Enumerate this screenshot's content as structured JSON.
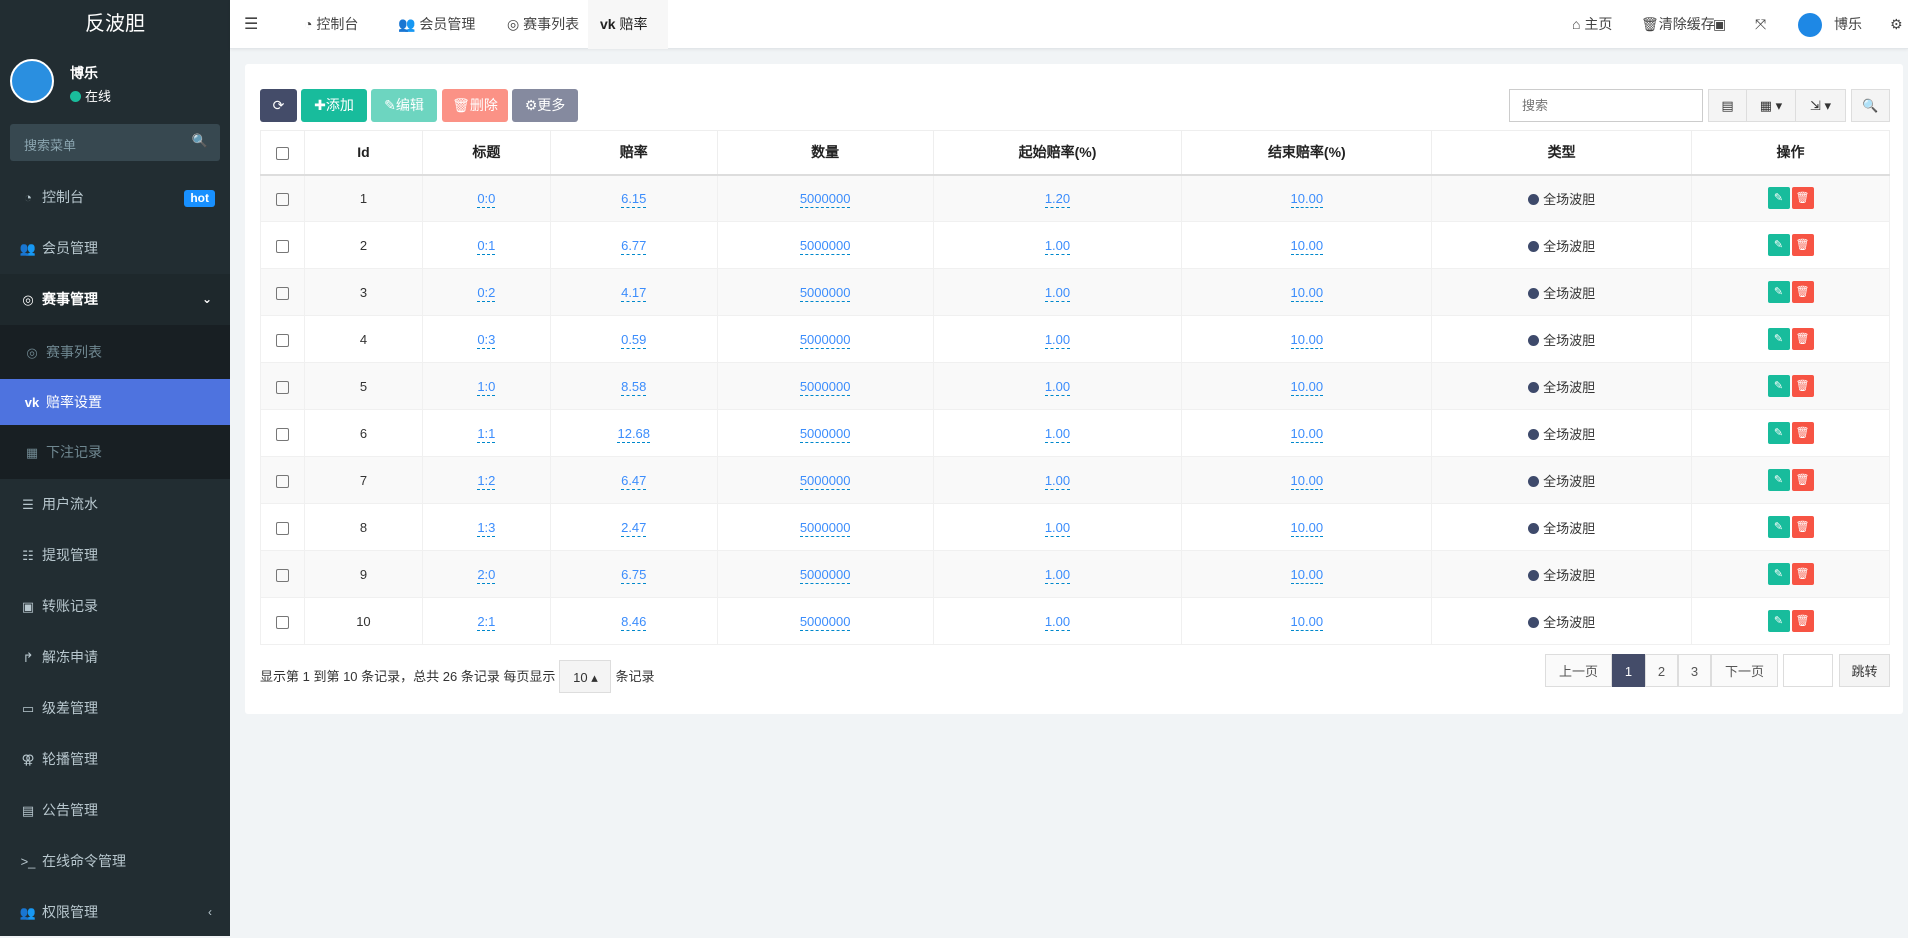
{
  "app": {
    "title": "反波胆"
  },
  "user": {
    "name": "博乐",
    "status": "在线"
  },
  "menu_search": {
    "placeholder": "搜索菜单"
  },
  "sidebar": {
    "items": [
      {
        "label": "控制台",
        "icon": "dashboard-icon",
        "badge": "hot"
      },
      {
        "label": "会员管理",
        "icon": "users-icon"
      },
      {
        "label": "赛事管理",
        "icon": "life-ring-icon",
        "expanded": true,
        "children": [
          {
            "label": "赛事列表",
            "icon": "life-ring-icon"
          },
          {
            "label": "赔率设置",
            "icon": "vk-icon",
            "active": true
          },
          {
            "label": "下注记录",
            "icon": "calendar-icon"
          }
        ]
      },
      {
        "label": "用户流水",
        "icon": "bars-icon"
      },
      {
        "label": "提现管理",
        "icon": "indent-icon"
      },
      {
        "label": "转账记录",
        "icon": "translate-icon"
      },
      {
        "label": "解冻申请",
        "icon": "share-square-icon"
      },
      {
        "label": "级差管理",
        "icon": "window-icon"
      },
      {
        "label": "轮播管理",
        "icon": "venus-mars-icon"
      },
      {
        "label": "公告管理",
        "icon": "newspaper-icon"
      },
      {
        "label": "在线命令管理",
        "icon": "terminal-icon"
      },
      {
        "label": "权限管理",
        "icon": "users-icon"
      }
    ]
  },
  "header": {
    "tabs": [
      {
        "label": "控制台"
      },
      {
        "label": "会员管理"
      },
      {
        "label": "赛事列表"
      },
      {
        "label": "赔率设置",
        "active": true
      }
    ],
    "right": {
      "home": "主页",
      "clear_cache": "清除缓存",
      "user": "博乐"
    }
  },
  "toolbar": {
    "add": "添加",
    "edit": "编辑",
    "delete": "删除",
    "more": "更多",
    "search_placeholder": "搜索"
  },
  "colors": {
    "primary": "#444c69",
    "success": "#18bc9c",
    "danger": "#f75444",
    "sidebar": "#222d32",
    "active": "#4e73df"
  },
  "table": {
    "columns": [
      "Id",
      "标题",
      "赔率",
      "数量",
      "起始赔率(%)",
      "结束赔率(%)",
      "类型",
      "操作"
    ],
    "rows": [
      {
        "id": "1",
        "title": "0:0",
        "odds": "6.15",
        "qty": "5000000",
        "start": "1.20",
        "end": "10.00",
        "type": "全场波胆"
      },
      {
        "id": "2",
        "title": "0:1",
        "odds": "6.77",
        "qty": "5000000",
        "start": "1.00",
        "end": "10.00",
        "type": "全场波胆"
      },
      {
        "id": "3",
        "title": "0:2",
        "odds": "4.17",
        "qty": "5000000",
        "start": "1.00",
        "end": "10.00",
        "type": "全场波胆"
      },
      {
        "id": "4",
        "title": "0:3",
        "odds": "0.59",
        "qty": "5000000",
        "start": "1.00",
        "end": "10.00",
        "type": "全场波胆"
      },
      {
        "id": "5",
        "title": "1:0",
        "odds": "8.58",
        "qty": "5000000",
        "start": "1.00",
        "end": "10.00",
        "type": "全场波胆"
      },
      {
        "id": "6",
        "title": "1:1",
        "odds": "12.68",
        "qty": "5000000",
        "start": "1.00",
        "end": "10.00",
        "type": "全场波胆"
      },
      {
        "id": "7",
        "title": "1:2",
        "odds": "6.47",
        "qty": "5000000",
        "start": "1.00",
        "end": "10.00",
        "type": "全场波胆"
      },
      {
        "id": "8",
        "title": "1:3",
        "odds": "2.47",
        "qty": "5000000",
        "start": "1.00",
        "end": "10.00",
        "type": "全场波胆"
      },
      {
        "id": "9",
        "title": "2:0",
        "odds": "6.75",
        "qty": "5000000",
        "start": "1.00",
        "end": "10.00",
        "type": "全场波胆"
      },
      {
        "id": "10",
        "title": "2:1",
        "odds": "8.46",
        "qty": "5000000",
        "start": "1.00",
        "end": "10.00",
        "type": "全场波胆"
      }
    ]
  },
  "pagination": {
    "summary": "显示第 1 到第 10 条记录，总共 26 条记录 每页显示",
    "page_size": "10",
    "suffix": "条记录",
    "prev": "上一页",
    "pages": [
      "1",
      "2",
      "3"
    ],
    "current": "1",
    "next": "下一页",
    "jump": "跳转"
  }
}
